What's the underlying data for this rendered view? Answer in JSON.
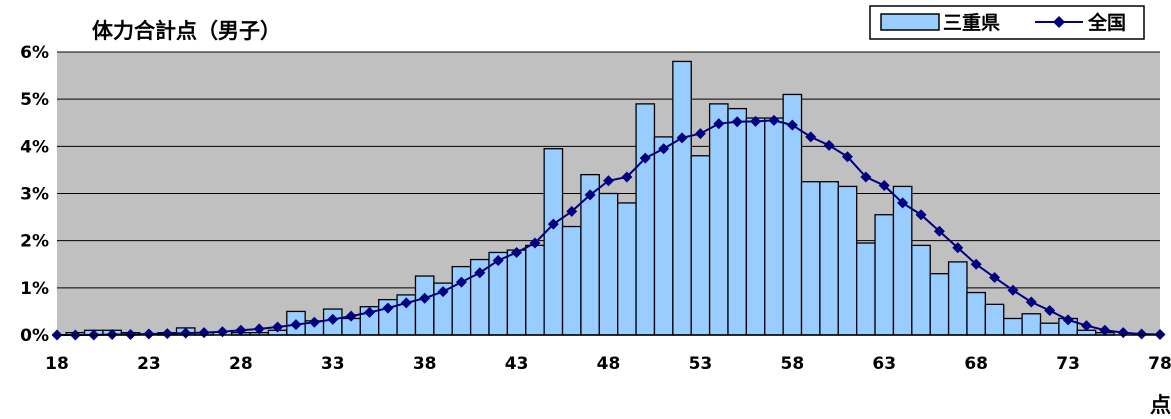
{
  "chart_data": {
    "type": "bar",
    "title": "体力合計点（男子）",
    "xlabel": "点",
    "ylabel": "",
    "ylim": [
      0,
      6
    ],
    "xlim": [
      18,
      78
    ],
    "x_ticks": [
      "18",
      "23",
      "28",
      "33",
      "38",
      "43",
      "48",
      "53",
      "58",
      "63",
      "68",
      "73",
      "78"
    ],
    "y_ticks": [
      "0%",
      "1%",
      "2%",
      "3%",
      "4%",
      "5%",
      "6%"
    ],
    "grid": true,
    "legend": "top-right",
    "colors": {
      "plot_bg": "#c0c0c0",
      "bar_fill": "#99ccff",
      "bar_edge": "#000000",
      "line": "#000080"
    },
    "x": [
      18,
      19,
      20,
      21,
      22,
      23,
      24,
      25,
      26,
      27,
      28,
      29,
      30,
      31,
      32,
      33,
      34,
      35,
      36,
      37,
      38,
      39,
      40,
      41,
      42,
      43,
      44,
      45,
      46,
      47,
      48,
      49,
      50,
      51,
      52,
      53,
      54,
      55,
      56,
      57,
      58,
      59,
      60,
      61,
      62,
      63,
      64,
      65,
      66,
      67,
      68,
      69,
      70,
      71,
      72,
      73,
      74,
      75,
      76,
      77,
      78
    ],
    "series": [
      {
        "name": "三重県",
        "type": "bar",
        "values": [
          0,
          0.05,
          0.1,
          0.1,
          0.05,
          0,
          0.05,
          0.15,
          0.05,
          0,
          0.05,
          0.05,
          0.1,
          0.5,
          0.3,
          0.55,
          0.35,
          0.6,
          0.75,
          0.85,
          1.25,
          1.1,
          1.45,
          1.6,
          1.75,
          1.8,
          1.9,
          3.95,
          2.3,
          3.4,
          3.0,
          2.8,
          4.9,
          4.2,
          5.8,
          3.8,
          4.9,
          4.8,
          4.6,
          4.6,
          5.1,
          3.25,
          3.25,
          3.15,
          1.95,
          2.55,
          3.15,
          1.9,
          1.3,
          1.55,
          0.9,
          0.65,
          0.35,
          0.45,
          0.25,
          0.35,
          0.1,
          0.05,
          0,
          0,
          0
        ]
      },
      {
        "name": "全国",
        "type": "line",
        "values": [
          0,
          0,
          0,
          0.01,
          0.01,
          0.02,
          0.03,
          0.04,
          0.05,
          0.07,
          0.1,
          0.13,
          0.17,
          0.22,
          0.27,
          0.33,
          0.4,
          0.48,
          0.57,
          0.68,
          0.78,
          0.92,
          1.12,
          1.32,
          1.58,
          1.75,
          1.95,
          2.35,
          2.62,
          2.97,
          3.27,
          3.35,
          3.75,
          3.95,
          4.18,
          4.27,
          4.48,
          4.52,
          4.53,
          4.55,
          4.45,
          4.2,
          4.02,
          3.78,
          3.35,
          3.17,
          2.8,
          2.55,
          2.2,
          1.85,
          1.5,
          1.22,
          0.95,
          0.7,
          0.52,
          0.32,
          0.2,
          0.1,
          0.05,
          0.02,
          0.01
        ]
      }
    ]
  }
}
